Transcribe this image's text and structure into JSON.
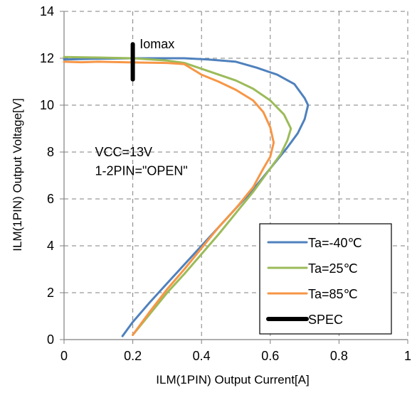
{
  "chart_data": {
    "type": "line",
    "xlabel": "ILM(1PIN) Output Current[A]",
    "ylabel": "ILM(1PIN) Output Voltage[V]",
    "xlim": [
      0,
      1
    ],
    "ylim": [
      0,
      14
    ],
    "xticks": [
      "0",
      "0.2",
      "0.4",
      "0.6",
      "0.8",
      "1"
    ],
    "yticks": [
      "0",
      "2",
      "4",
      "6",
      "8",
      "10",
      "12",
      "14"
    ],
    "grid": "vertical dashed at x ticks, horizontal dashed at y ticks",
    "legend_position": "bottom-right",
    "series": [
      {
        "name": "Ta=-40℃",
        "color": "#4F81BD",
        "points": [
          [
            0.0,
            11.95
          ],
          [
            0.1,
            11.98
          ],
          [
            0.2,
            12.0
          ],
          [
            0.3,
            12.0
          ],
          [
            0.35,
            12.0
          ],
          [
            0.42,
            11.95
          ],
          [
            0.5,
            11.85
          ],
          [
            0.56,
            11.6
          ],
          [
            0.62,
            11.3
          ],
          [
            0.67,
            10.9
          ],
          [
            0.7,
            10.3
          ],
          [
            0.71,
            10.0
          ],
          [
            0.7,
            9.4
          ],
          [
            0.68,
            8.8
          ],
          [
            0.65,
            8.2
          ],
          [
            0.6,
            7.3
          ],
          [
            0.55,
            6.4
          ],
          [
            0.5,
            5.6
          ],
          [
            0.45,
            4.8
          ],
          [
            0.4,
            4.0
          ],
          [
            0.35,
            3.2
          ],
          [
            0.3,
            2.4
          ],
          [
            0.25,
            1.6
          ],
          [
            0.2,
            0.75
          ],
          [
            0.17,
            0.15
          ]
        ]
      },
      {
        "name": "Ta=25℃",
        "color": "#9BBB59",
        "points": [
          [
            0.0,
            12.05
          ],
          [
            0.1,
            12.03
          ],
          [
            0.2,
            12.0
          ],
          [
            0.3,
            11.9
          ],
          [
            0.35,
            11.8
          ],
          [
            0.4,
            11.55
          ],
          [
            0.45,
            11.3
          ],
          [
            0.5,
            11.05
          ],
          [
            0.55,
            10.7
          ],
          [
            0.6,
            10.2
          ],
          [
            0.64,
            9.6
          ],
          [
            0.66,
            9.0
          ],
          [
            0.65,
            8.5
          ],
          [
            0.63,
            7.9
          ],
          [
            0.6,
            7.3
          ],
          [
            0.55,
            6.3
          ],
          [
            0.5,
            5.4
          ],
          [
            0.45,
            4.5
          ],
          [
            0.4,
            3.65
          ],
          [
            0.35,
            2.8
          ],
          [
            0.3,
            2.0
          ],
          [
            0.25,
            1.1
          ],
          [
            0.2,
            0.2
          ]
        ]
      },
      {
        "name": "Ta=85℃",
        "color": "#F79646",
        "points": [
          [
            0.0,
            11.85
          ],
          [
            0.05,
            11.83
          ],
          [
            0.1,
            11.85
          ],
          [
            0.2,
            11.82
          ],
          [
            0.3,
            11.8
          ],
          [
            0.35,
            11.75
          ],
          [
            0.4,
            11.3
          ],
          [
            0.45,
            11.0
          ],
          [
            0.5,
            10.65
          ],
          [
            0.55,
            10.2
          ],
          [
            0.58,
            9.7
          ],
          [
            0.6,
            9.05
          ],
          [
            0.61,
            8.4
          ],
          [
            0.6,
            7.8
          ],
          [
            0.58,
            7.3
          ],
          [
            0.55,
            6.5
          ],
          [
            0.5,
            5.6
          ],
          [
            0.45,
            4.8
          ],
          [
            0.4,
            3.9
          ],
          [
            0.35,
            3.0
          ],
          [
            0.3,
            2.15
          ],
          [
            0.25,
            1.2
          ],
          [
            0.2,
            0.2
          ]
        ]
      },
      {
        "name": "SPEC",
        "color": "#000000",
        "points": [
          [
            0.2,
            11.1
          ],
          [
            0.2,
            12.6
          ]
        ]
      }
    ],
    "annotations": [
      {
        "text": "Iomax",
        "x": 0.22,
        "y": 12.6
      },
      {
        "text": "VCC=13V",
        "x": 0.09,
        "y": 8.0
      },
      {
        "text": "1-2PIN=\"OPEN\"",
        "x": 0.09,
        "y": 7.2
      }
    ]
  }
}
